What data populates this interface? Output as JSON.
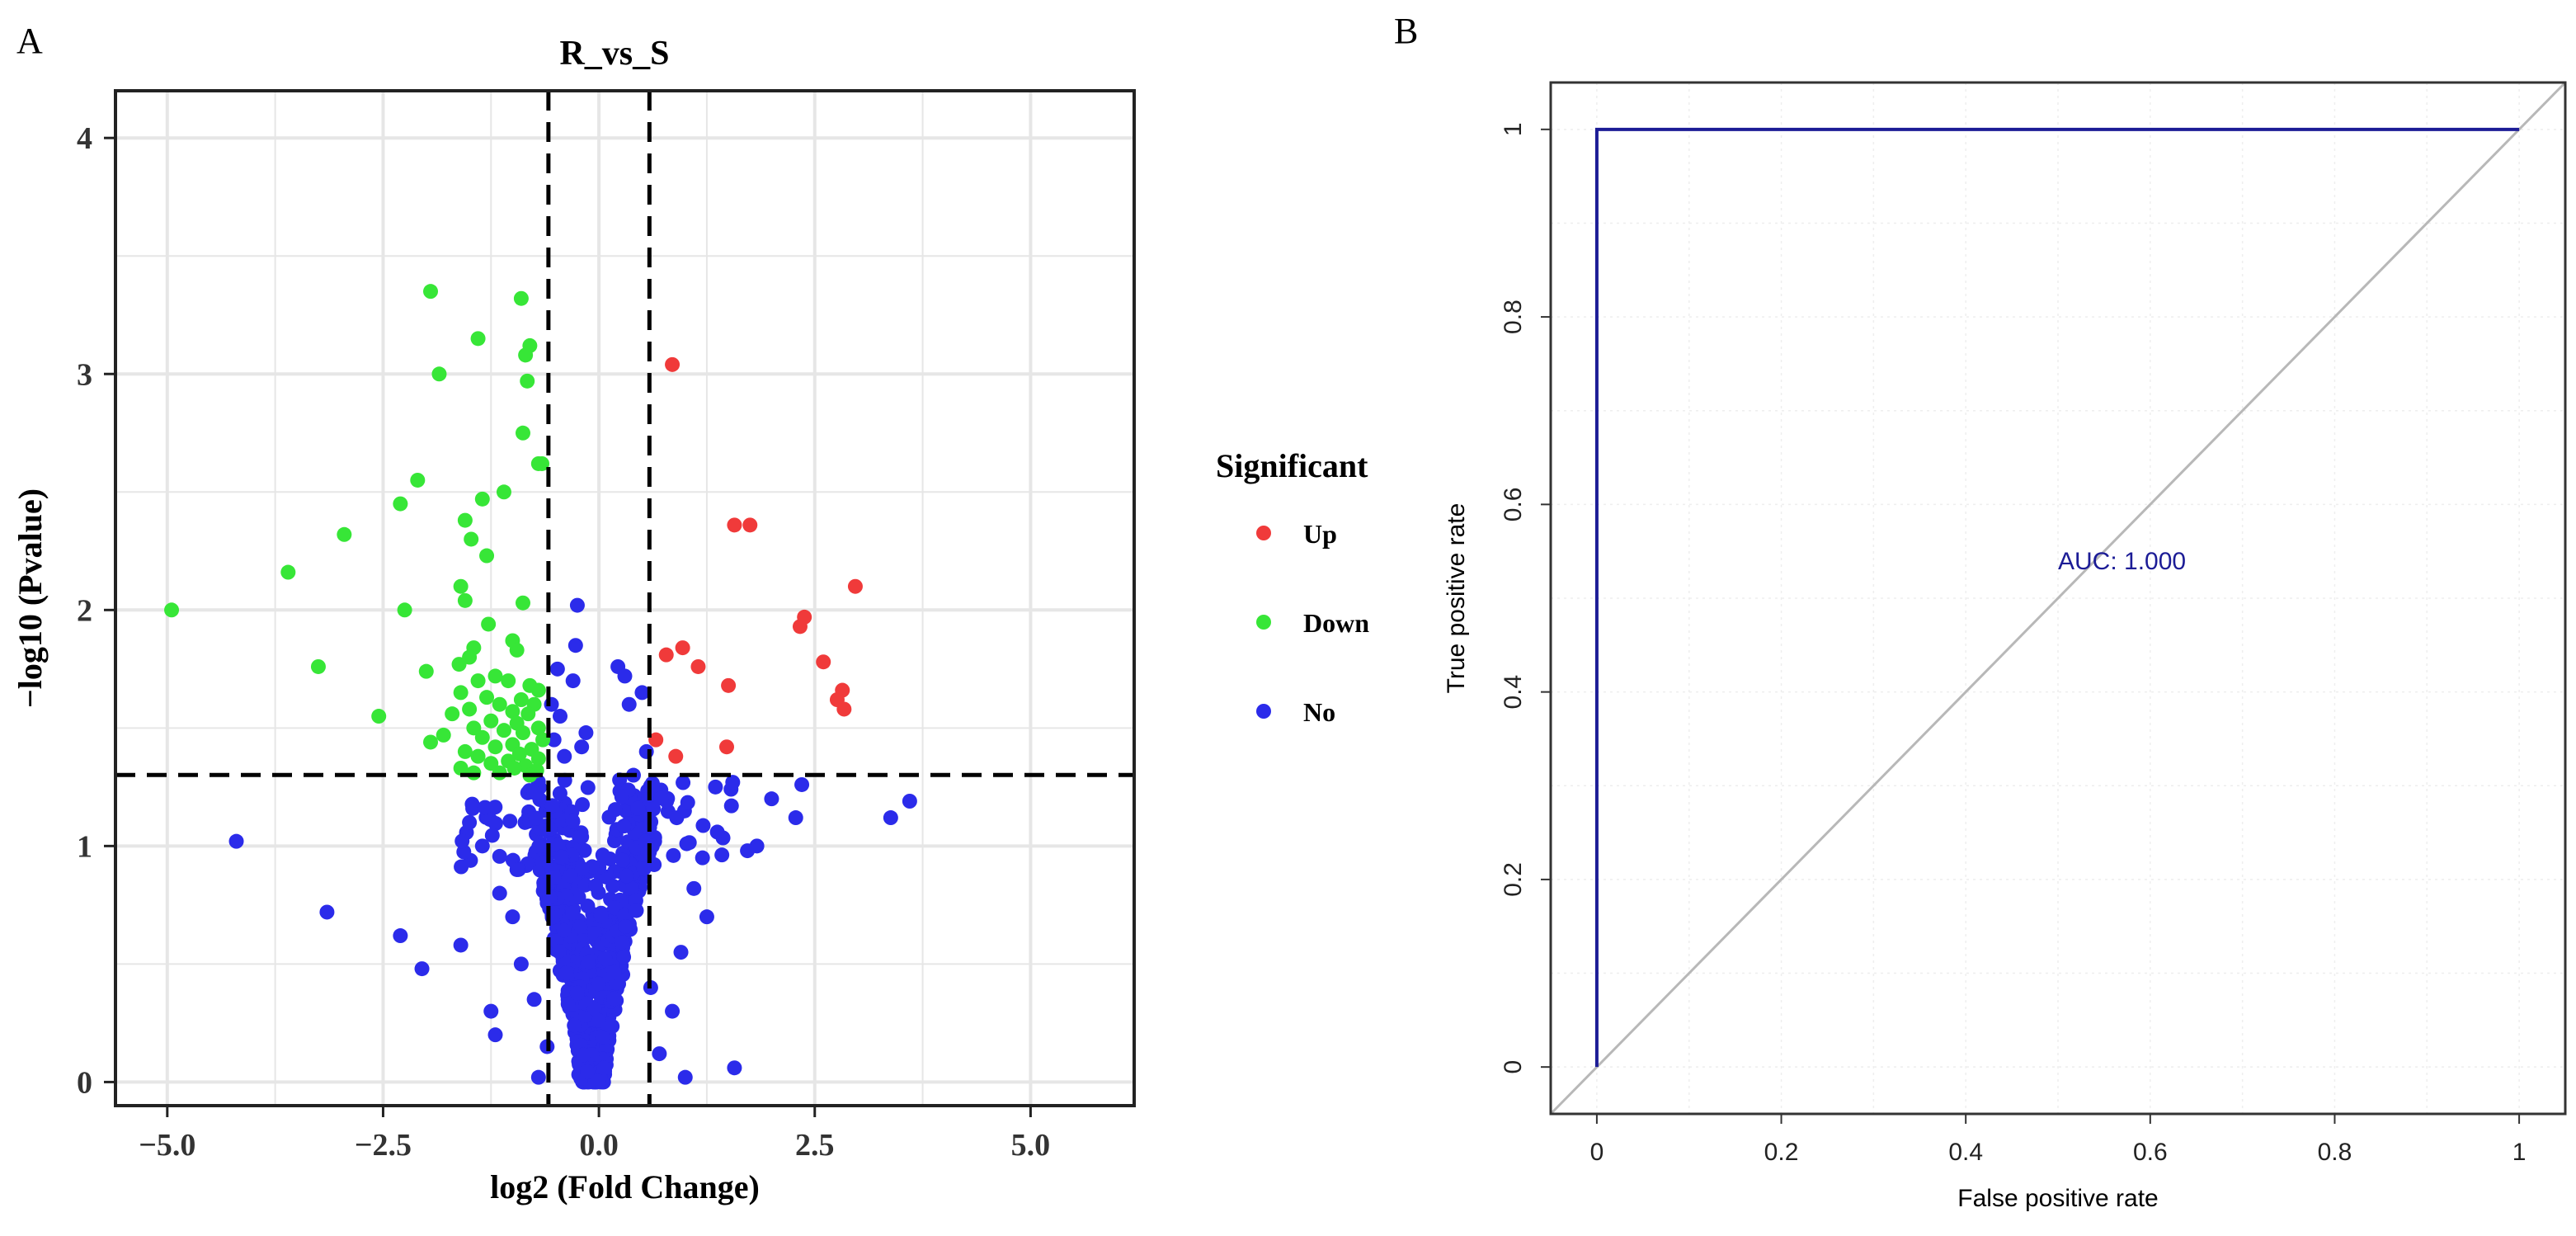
{
  "panels": {
    "a": {
      "letter": "A"
    },
    "b": {
      "letter": "B"
    }
  },
  "colors": {
    "up": "#f03a3a",
    "down": "#37e637",
    "no": "#2b2bea",
    "roc_line": "#1c1c96",
    "diagonal": "#b8b8b8",
    "volcano_bg": "#ffffff",
    "volcano_grid": "#e6e6e6",
    "roc_grid": "#eeeeee"
  },
  "chart_data": [
    {
      "type": "scatter",
      "title": "R_vs_S",
      "xlabel": "log2 (Fold Change)",
      "ylabel": "−log10 (Pvalue)",
      "xlim": [
        -5.6,
        6.2
      ],
      "ylim": [
        -0.1,
        4.2
      ],
      "xticks": [
        -5.0,
        -2.5,
        0.0,
        2.5,
        5.0
      ],
      "xtick_labels": [
        "−5.0",
        "−2.5",
        "0.0",
        "2.5",
        "5.0"
      ],
      "yticks": [
        0,
        1,
        2,
        3,
        4
      ],
      "ytick_labels": [
        "0",
        "1",
        "2",
        "3",
        "4"
      ],
      "grid": true,
      "thresholds": {
        "x": [
          -0.585,
          0.585
        ],
        "y": 1.301
      },
      "legend": {
        "title": "Significant",
        "position": "right",
        "entries": [
          {
            "label": "Up",
            "color_key": "up"
          },
          {
            "label": "Down",
            "color_key": "down"
          },
          {
            "label": "No",
            "color_key": "no"
          }
        ]
      },
      "series": [
        {
          "name": "Up",
          "points": [
            [
              0.85,
              3.04
            ],
            [
              1.57,
              2.36
            ],
            [
              1.75,
              2.36
            ],
            [
              2.97,
              2.1
            ],
            [
              2.38,
              1.97
            ],
            [
              2.33,
              1.93
            ],
            [
              2.6,
              1.78
            ],
            [
              0.97,
              1.84
            ],
            [
              0.78,
              1.81
            ],
            [
              1.15,
              1.76
            ],
            [
              1.5,
              1.68
            ],
            [
              2.82,
              1.66
            ],
            [
              2.76,
              1.62
            ],
            [
              2.84,
              1.58
            ],
            [
              0.66,
              1.45
            ],
            [
              1.48,
              1.42
            ],
            [
              0.89,
              1.38
            ]
          ]
        },
        {
          "name": "Down",
          "points": [
            [
              -1.95,
              3.35
            ],
            [
              -0.9,
              3.32
            ],
            [
              -1.4,
              3.15
            ],
            [
              -0.8,
              3.12
            ],
            [
              -0.85,
              3.08
            ],
            [
              -1.85,
              3.0
            ],
            [
              -0.83,
              2.97
            ],
            [
              -0.88,
              2.75
            ],
            [
              -0.7,
              2.62
            ],
            [
              -0.66,
              2.62
            ],
            [
              -2.1,
              2.55
            ],
            [
              -1.35,
              2.47
            ],
            [
              -1.1,
              2.5
            ],
            [
              -2.3,
              2.45
            ],
            [
              -1.55,
              2.38
            ],
            [
              -2.95,
              2.32
            ],
            [
              -1.48,
              2.3
            ],
            [
              -1.3,
              2.23
            ],
            [
              -3.6,
              2.16
            ],
            [
              -1.6,
              2.1
            ],
            [
              -0.88,
              2.03
            ],
            [
              -1.55,
              2.04
            ],
            [
              -2.25,
              2.0
            ],
            [
              -4.95,
              2.0
            ],
            [
              -1.28,
              1.94
            ],
            [
              -1.0,
              1.87
            ],
            [
              -1.45,
              1.84
            ],
            [
              -0.95,
              1.83
            ],
            [
              -1.62,
              1.77
            ],
            [
              -1.5,
              1.8
            ],
            [
              -3.25,
              1.76
            ],
            [
              -2.0,
              1.74
            ],
            [
              -1.2,
              1.72
            ],
            [
              -1.4,
              1.7
            ],
            [
              -1.05,
              1.7
            ],
            [
              -0.8,
              1.68
            ],
            [
              -0.7,
              1.66
            ],
            [
              -1.6,
              1.65
            ],
            [
              -1.3,
              1.63
            ],
            [
              -0.9,
              1.62
            ],
            [
              -1.15,
              1.6
            ],
            [
              -0.75,
              1.6
            ],
            [
              -1.5,
              1.58
            ],
            [
              -1.0,
              1.57
            ],
            [
              -0.82,
              1.56
            ],
            [
              -1.7,
              1.56
            ],
            [
              -2.55,
              1.55
            ],
            [
              -1.25,
              1.53
            ],
            [
              -0.95,
              1.52
            ],
            [
              -0.7,
              1.5
            ],
            [
              -1.45,
              1.5
            ],
            [
              -1.1,
              1.49
            ],
            [
              -0.88,
              1.48
            ],
            [
              -1.8,
              1.47
            ],
            [
              -1.35,
              1.46
            ],
            [
              -0.65,
              1.45
            ],
            [
              -1.95,
              1.44
            ],
            [
              -1.0,
              1.43
            ],
            [
              -1.2,
              1.42
            ],
            [
              -0.78,
              1.41
            ],
            [
              -1.55,
              1.4
            ],
            [
              -0.92,
              1.39
            ],
            [
              -1.4,
              1.38
            ],
            [
              -0.7,
              1.37
            ],
            [
              -1.05,
              1.36
            ],
            [
              -1.25,
              1.35
            ],
            [
              -0.85,
              1.34
            ],
            [
              -1.6,
              1.33
            ],
            [
              -0.98,
              1.33
            ],
            [
              -0.72,
              1.32
            ],
            [
              -1.15,
              1.31
            ],
            [
              -1.45,
              1.31
            ],
            [
              -0.8,
              1.3
            ]
          ]
        },
        {
          "name": "No",
          "points": [
            [
              -0.25,
              2.02
            ],
            [
              -0.27,
              1.85
            ],
            [
              -0.3,
              1.7
            ],
            [
              -0.55,
              1.6
            ],
            [
              -0.48,
              1.75
            ],
            [
              -0.45,
              1.55
            ],
            [
              -0.52,
              1.45
            ],
            [
              0.22,
              1.76
            ],
            [
              0.3,
              1.72
            ],
            [
              0.35,
              1.6
            ],
            [
              0.5,
              1.65
            ],
            [
              0.55,
              1.4
            ],
            [
              0.4,
              1.3
            ],
            [
              -0.4,
              1.38
            ],
            [
              -0.2,
              1.42
            ],
            [
              -0.15,
              1.48
            ],
            [
              -4.2,
              1.02
            ],
            [
              -3.15,
              0.72
            ],
            [
              -2.3,
              0.62
            ],
            [
              -2.05,
              0.48
            ],
            [
              -1.6,
              0.58
            ],
            [
              -1.2,
              0.2
            ],
            [
              -1.25,
              0.3
            ],
            [
              -1.0,
              0.7
            ],
            [
              3.38,
              1.12
            ],
            [
              3.6,
              1.19
            ],
            [
              2.28,
              1.12
            ],
            [
              2.35,
              1.26
            ],
            [
              1.83,
              1.0
            ],
            [
              1.72,
              0.98
            ],
            [
              1.35,
              1.25
            ],
            [
              1.55,
              1.27
            ],
            [
              2.0,
              1.2
            ],
            [
              1.2,
              0.95
            ],
            [
              1.0,
              0.02
            ],
            [
              1.57,
              0.06
            ],
            [
              -1.5,
              1.1
            ],
            [
              -1.35,
              1.0
            ],
            [
              -1.15,
              0.8
            ],
            [
              -0.9,
              0.5
            ],
            [
              -0.95,
              0.9
            ],
            [
              1.1,
              0.82
            ],
            [
              1.25,
              0.7
            ],
            [
              0.95,
              0.55
            ],
            [
              0.85,
              0.3
            ],
            [
              0.7,
              0.12
            ],
            [
              -0.7,
              0.02
            ],
            [
              -0.6,
              0.15
            ],
            [
              0.6,
              0.4
            ],
            [
              -0.75,
              0.35
            ]
          ]
        }
      ],
      "no_cloud": {
        "count": 900,
        "seed": 7
      }
    },
    {
      "type": "line",
      "title": "",
      "xlabel": "False positive rate",
      "ylabel": "True positive rate",
      "xlim": [
        -0.05,
        1.05
      ],
      "ylim": [
        -0.05,
        1.05
      ],
      "xticks": [
        0,
        0.2,
        0.4,
        0.6,
        0.8,
        1
      ],
      "xtick_labels": [
        "0",
        "0.2",
        "0.4",
        "0.6",
        "0.8",
        "1"
      ],
      "yticks": [
        0,
        0.2,
        0.4,
        0.6,
        0.8,
        1
      ],
      "ytick_labels": [
        "0",
        "0.2",
        "0.4",
        "0.6",
        "0.8",
        "1"
      ],
      "grid": true,
      "series": [
        {
          "name": "",
          "x": [
            0,
            0,
            1
          ],
          "y": [
            0,
            1,
            1
          ]
        }
      ],
      "reference_line": {
        "x": [
          0,
          1
        ],
        "y": [
          0,
          1
        ]
      },
      "annotation": {
        "text": "AUC: 1.000",
        "x": 0.5,
        "y": 0.5
      }
    }
  ]
}
